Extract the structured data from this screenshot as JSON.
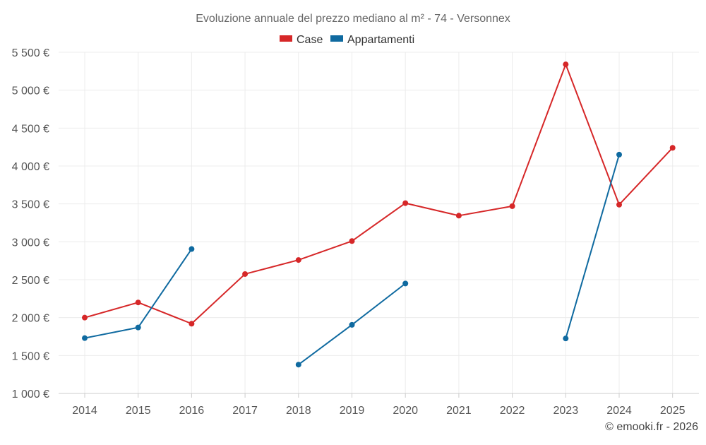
{
  "chart_data": {
    "type": "line",
    "title": "Evoluzione annuale del prezzo mediano al m² - 74 - Versonnex",
    "categories": [
      "2014",
      "2015",
      "2016",
      "2017",
      "2018",
      "2019",
      "2020",
      "2021",
      "2022",
      "2023",
      "2024",
      "2025"
    ],
    "ylim": [
      1000,
      5500
    ],
    "ytick_values": [
      1000,
      1500,
      2000,
      2500,
      3000,
      3500,
      4000,
      4500,
      5000,
      5500
    ],
    "ytick_labels": [
      "1 000 €",
      "1 500 €",
      "2 000 €",
      "2 500 €",
      "3 000 €",
      "3 500 €",
      "4 000 €",
      "4 500 €",
      "5 000 €",
      "5 500 €"
    ],
    "grid": true,
    "legend_position": "top-center",
    "series": [
      {
        "name": "Case",
        "color": "#d62728",
        "values": [
          2000,
          2200,
          1920,
          2575,
          2760,
          3010,
          3510,
          3345,
          3470,
          5340,
          3490,
          4240
        ]
      },
      {
        "name": "Appartamenti",
        "color": "#0f6aa0",
        "values": [
          1730,
          1870,
          2905,
          null,
          1380,
          1905,
          2450,
          null,
          null,
          1725,
          4150,
          null
        ]
      }
    ],
    "credit": "© emooki.fr - 2026"
  }
}
